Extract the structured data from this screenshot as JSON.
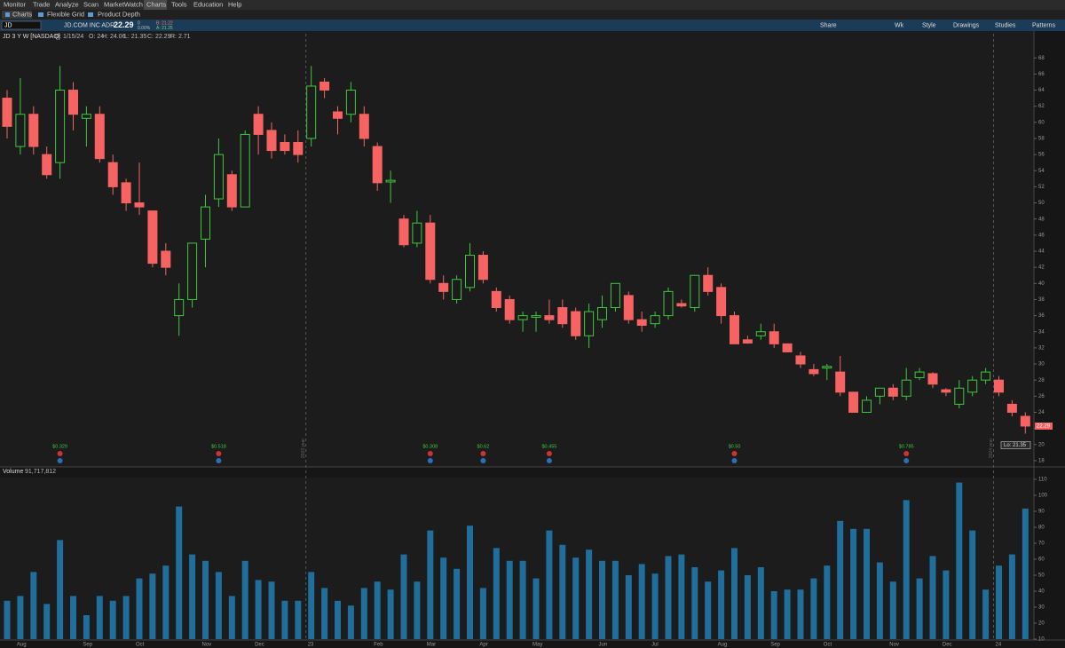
{
  "menu": [
    "Monitor",
    "Trade",
    "Analyze",
    "Scan",
    "MarketWatch",
    "Charts",
    "Tools",
    "Education",
    "Help"
  ],
  "tabs": [
    "Charts",
    "Flexible Grid",
    "Product Depth"
  ],
  "toolbar": {
    "symbol": "JD",
    "name": "JD.COM INC ADR",
    "last": "22.29",
    "change": "0",
    "change_pct": "0.00%",
    "bid": "B: 21.22",
    "ask": "A: 21.25",
    "buttons": [
      "Share",
      "Wk",
      "Style",
      "Drawings",
      "Studies",
      "Patterns"
    ]
  },
  "info": [
    "JD 3 Y W [NASDAQ]",
    "D: 1/15/24",
    "O: 24",
    "H: 24.06",
    "L: 21.35",
    "C: 22.29",
    "R: 2.71"
  ],
  "events": [
    "$0.329",
    "$0.518",
    "$0.308",
    "$0.62",
    "$0.455",
    "$0.50",
    "$0.785"
  ],
  "year_labels": [
    "2023 year",
    "2024 year"
  ],
  "chart_data": [
    {
      "type": "candlestick",
      "lo_label": "Lo: 21.35",
      "up_color": "#3ec83e",
      "down_color": "#f76363",
      "categories": [
        null,
        "Aug",
        null,
        null,
        null,
        null,
        "Sep",
        null,
        null,
        null,
        "Oct",
        null,
        null,
        null,
        null,
        "Nov",
        null,
        null,
        null,
        "Dec",
        null,
        null,
        null,
        "23",
        null,
        null,
        null,
        null,
        "Feb",
        null,
        null,
        null,
        "Mar",
        null,
        null,
        null,
        "Apr",
        null,
        null,
        null,
        "May",
        null,
        null,
        null,
        null,
        "Jun",
        null,
        null,
        null,
        "Jul",
        null,
        null,
        null,
        null,
        "Aug",
        null,
        null,
        null,
        "Sep",
        null,
        null,
        null,
        "Oct",
        null,
        null,
        null,
        null,
        "Nov",
        null,
        null,
        null,
        "Dec",
        null,
        null,
        null,
        "24",
        null,
        null
      ],
      "open": [
        63,
        57,
        61,
        56,
        55,
        64,
        60.5,
        61,
        55,
        52.5,
        50,
        49,
        44,
        36,
        38,
        45.5,
        50.5,
        53.5,
        49.5,
        61,
        59,
        57.5,
        57.5,
        58,
        65,
        61.3,
        61,
        61,
        57,
        52.6,
        48,
        45,
        47.5,
        40,
        38,
        39.5,
        43.5,
        39,
        38,
        35.5,
        35.8,
        36,
        37,
        36.5,
        33.5,
        35.5,
        37,
        38.5,
        35.5,
        35,
        36,
        37.5,
        37,
        41,
        39.5,
        36,
        33,
        33.5,
        34,
        32.5,
        31,
        29.3,
        29.5,
        29,
        26.5,
        24,
        26,
        27,
        26,
        28.3,
        28.8,
        26.8,
        25,
        26.5,
        28,
        28,
        25,
        23.5
      ],
      "high": [
        64,
        65.5,
        62,
        57,
        67,
        65,
        62,
        62,
        56,
        53,
        55,
        49,
        45,
        40,
        45,
        51,
        58,
        54,
        59,
        62,
        60,
        58.5,
        59,
        67,
        65.5,
        62,
        65,
        62,
        57.5,
        54,
        48.5,
        49,
        48.5,
        41,
        41,
        45,
        44,
        39.5,
        38.5,
        36.5,
        36.5,
        38,
        38,
        37,
        37.5,
        38.5,
        40,
        39,
        36.5,
        36.5,
        39.5,
        38,
        41,
        42,
        40,
        36.5,
        33.5,
        35,
        35,
        32.5,
        31.5,
        30,
        30,
        31,
        26.5,
        26,
        27,
        27.5,
        29.5,
        29.5,
        29,
        27,
        28,
        28.5,
        29.5,
        28.5,
        25.5,
        24
      ],
      "low": [
        58,
        56,
        56,
        53,
        53,
        59,
        57,
        55,
        51,
        49,
        48.5,
        42,
        41,
        33.5,
        37,
        42,
        49.5,
        49,
        49.5,
        56,
        55.5,
        56,
        55,
        57,
        63,
        58.5,
        60,
        57,
        51.5,
        50,
        44.5,
        44.5,
        40,
        38,
        37.5,
        39,
        40,
        36.5,
        35,
        34,
        34,
        35,
        34.5,
        33,
        32,
        34.5,
        36.5,
        35,
        34,
        34.5,
        35.5,
        37,
        36.5,
        38.5,
        35,
        32.5,
        32.5,
        33,
        32,
        31.5,
        29.5,
        28.5,
        28,
        26,
        24,
        24,
        25,
        25.5,
        25.5,
        28,
        27,
        26,
        24.5,
        26,
        27.5,
        26,
        23.5,
        21.35
      ],
      "close": [
        59.5,
        61,
        57,
        53.5,
        64,
        61,
        61,
        55.5,
        52,
        50,
        49.5,
        42.5,
        42,
        38,
        45,
        49.5,
        56,
        49.5,
        58.5,
        58.5,
        56.5,
        56.5,
        56,
        64.5,
        64,
        60.5,
        64,
        58,
        52.5,
        52.8,
        44.8,
        47.5,
        40.5,
        39,
        40.5,
        43.5,
        40.5,
        37,
        35.5,
        36,
        36,
        35.5,
        35,
        33.5,
        36.5,
        37,
        40,
        35.5,
        34.8,
        36,
        39,
        37.2,
        41,
        39,
        36,
        32.5,
        32.6,
        34,
        32.5,
        31.5,
        30,
        28.8,
        29.7,
        26.5,
        24,
        25.5,
        27,
        26,
        28,
        29,
        27.5,
        26.5,
        27,
        28,
        29,
        26.5,
        24,
        22.29
      ],
      "ylim": [
        17,
        71
      ],
      "yticks": [
        18,
        20,
        22,
        24,
        26,
        28,
        30,
        32,
        34,
        36,
        38,
        40,
        42,
        44,
        46,
        48,
        50,
        52,
        54,
        56,
        58,
        60,
        62,
        64,
        66,
        68
      ]
    },
    {
      "type": "bar",
      "title": "Volume",
      "last_label": "91,717,812",
      "color": "#1f6e9c",
      "values": [
        34,
        37,
        52,
        32,
        72,
        37,
        25,
        37,
        34,
        37,
        48,
        51,
        56,
        93,
        63,
        59,
        52,
        37,
        59,
        47,
        46,
        34,
        34,
        52,
        42,
        34,
        31,
        42,
        46,
        41,
        63,
        46,
        78,
        61,
        54,
        81,
        42,
        67,
        59,
        59,
        48,
        78,
        69,
        61,
        66,
        59,
        59,
        50,
        57,
        51,
        62,
        63,
        55,
        46,
        53,
        67,
        50,
        55,
        40,
        41,
        41,
        48,
        56,
        84,
        79,
        79,
        58,
        46,
        97,
        48,
        62,
        53,
        108,
        78,
        41,
        56,
        63,
        91.72
      ],
      "ylim": [
        10,
        110
      ],
      "yticks": [
        10,
        20,
        30,
        40,
        50,
        60,
        70,
        80,
        90,
        100,
        110
      ]
    }
  ]
}
